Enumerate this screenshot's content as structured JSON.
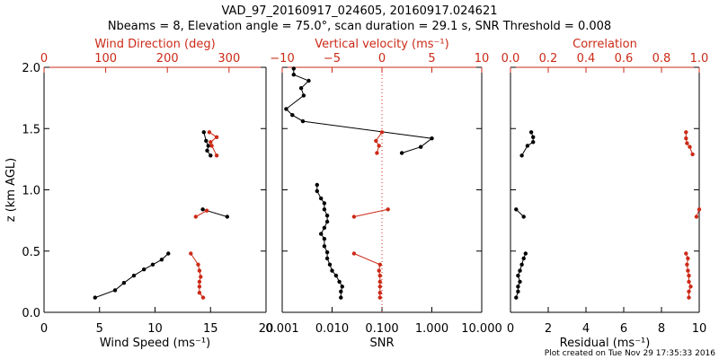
{
  "title": {
    "line1": "VAD_97_20160917_024605, 20160917.024621",
    "line2": "Nbeams = 8, Elevation angle = 75.0°, scan duration = 29.1 s, SNR Threshold = 0.008"
  },
  "footer": "Plot created on Tue Nov 29 17:35:33 2016",
  "colors": {
    "primary": "#000000",
    "secondary": "#cc2a17"
  },
  "chart_data": [
    {
      "type": "line",
      "panel": "wind",
      "ylabel": "z (km AGL)",
      "ylim": [
        0,
        2
      ],
      "yticks": [
        "0.0",
        "0.5",
        "1.0",
        "1.5",
        "2.0"
      ],
      "bottom_axis": {
        "label": "Wind Speed (ms⁻¹)",
        "range": [
          0,
          20
        ],
        "ticks": [
          "0",
          "5",
          "10",
          "15",
          "20"
        ]
      },
      "top_axis": {
        "label": "Wind Direction (deg)",
        "range": [
          0,
          360
        ],
        "ticks": [
          "0",
          "100",
          "200",
          "300"
        ]
      },
      "series": [
        {
          "color": "#000000",
          "axis": "bottom",
          "segments": [
            [
              [
                4.6,
                0.12
              ],
              [
                6.4,
                0.18
              ],
              [
                7.2,
                0.24
              ],
              [
                8.1,
                0.3
              ],
              [
                9.0,
                0.35
              ],
              [
                9.8,
                0.39
              ],
              [
                10.6,
                0.43
              ],
              [
                11.2,
                0.48
              ]
            ],
            [
              [
                14.3,
                0.84
              ],
              [
                16.5,
                0.78
              ]
            ],
            [
              [
                14.4,
                1.47
              ],
              [
                14.6,
                1.4
              ],
              [
                14.8,
                1.36
              ],
              [
                14.7,
                1.32
              ],
              [
                15.0,
                1.28
              ]
            ]
          ]
        },
        {
          "color": "#cc2a17",
          "axis": "top",
          "segments": [
            [
              [
                258,
                0.12
              ],
              [
                252,
                0.16
              ],
              [
                252,
                0.21
              ],
              [
                252,
                0.25
              ],
              [
                254,
                0.29
              ],
              [
                252,
                0.34
              ],
              [
                250,
                0.39
              ],
              [
                238,
                0.48
              ]
            ],
            [
              [
                246,
                0.78
              ],
              [
                264,
                0.83
              ]
            ],
            [
              [
                268,
                1.47
              ],
              [
                280,
                1.43
              ],
              [
                270,
                1.39
              ],
              [
                272,
                1.36
              ],
              [
                280,
                1.28
              ]
            ]
          ]
        }
      ]
    },
    {
      "type": "line",
      "panel": "snr",
      "ylim": [
        0,
        2
      ],
      "bottom_axis": {
        "label": "SNR",
        "scale": "log",
        "range": [
          0.001,
          10
        ],
        "ticks": [
          "0.001",
          "0.010",
          "0.100",
          "1.000",
          "10.000"
        ]
      },
      "top_axis": {
        "label": "Vertical velocity (ms⁻¹)",
        "range": [
          -10,
          10
        ],
        "ticks": [
          "−10",
          "−5",
          "0",
          "5",
          "10"
        ],
        "zero_line": 0
      },
      "series": [
        {
          "color": "#000000",
          "axis": "bottom",
          "segments": [
            [
              [
                0.015,
                0.12
              ],
              [
                0.015,
                0.17
              ],
              [
                0.016,
                0.21
              ],
              [
                0.014,
                0.25
              ],
              [
                0.012,
                0.3
              ],
              [
                0.01,
                0.34
              ],
              [
                0.009,
                0.39
              ],
              [
                0.008,
                0.44
              ],
              [
                0.008,
                0.49
              ],
              [
                0.007,
                0.54
              ],
              [
                0.007,
                0.6
              ],
              [
                0.006,
                0.64
              ],
              [
                0.007,
                0.69
              ],
              [
                0.008,
                0.74
              ],
              [
                0.008,
                0.79
              ],
              [
                0.007,
                0.84
              ],
              [
                0.007,
                0.89
              ],
              [
                0.006,
                0.93
              ],
              [
                0.005,
                0.99
              ],
              [
                0.005,
                1.04
              ]
            ],
            [
              [
                0.25,
                1.3
              ],
              [
                0.6,
                1.35
              ],
              [
                1.0,
                1.42
              ],
              [
                0.0026,
                1.56
              ],
              [
                0.0016,
                1.61
              ],
              [
                0.0012,
                1.66
              ],
              [
                0.0027,
                1.77
              ],
              [
                0.0024,
                1.83
              ],
              [
                0.0034,
                1.89
              ],
              [
                0.0017,
                1.94
              ],
              [
                0.0017,
                1.99
              ]
            ]
          ]
        },
        {
          "color": "#cc2a17",
          "axis": "top",
          "segments": [
            [
              [
                -0.2,
                0.12
              ],
              [
                -0.2,
                0.16
              ],
              [
                -0.2,
                0.21
              ],
              [
                -0.2,
                0.25
              ],
              [
                -0.2,
                0.3
              ],
              [
                -0.3,
                0.34
              ],
              [
                -0.2,
                0.39
              ],
              [
                -2.8,
                0.48
              ]
            ],
            [
              [
                -2.8,
                0.78
              ],
              [
                0.6,
                0.84
              ]
            ],
            [
              [
                -0.5,
                1.3
              ],
              [
                -0.3,
                1.36
              ],
              [
                -0.6,
                1.4
              ],
              [
                0.0,
                1.47
              ]
            ]
          ]
        }
      ]
    },
    {
      "type": "line",
      "panel": "residual",
      "ylim": [
        0,
        2
      ],
      "bottom_axis": {
        "label": "Residual (ms⁻¹)",
        "range": [
          0,
          10
        ],
        "ticks": [
          "0",
          "2",
          "4",
          "6",
          "8",
          "10"
        ]
      },
      "top_axis": {
        "label": "Correlation",
        "range": [
          0,
          1
        ],
        "ticks": [
          "0.0",
          "0.2",
          "0.4",
          "0.6",
          "0.8",
          "1.0"
        ]
      },
      "series": [
        {
          "color": "#000000",
          "axis": "bottom",
          "segments": [
            [
              [
                0.3,
                0.12
              ],
              [
                0.4,
                0.17
              ],
              [
                0.4,
                0.21
              ],
              [
                0.5,
                0.25
              ],
              [
                0.4,
                0.3
              ],
              [
                0.5,
                0.34
              ],
              [
                0.6,
                0.39
              ],
              [
                0.7,
                0.44
              ],
              [
                0.8,
                0.48
              ]
            ],
            [
              [
                0.3,
                0.84
              ],
              [
                0.7,
                0.78
              ]
            ],
            [
              [
                1.1,
                1.47
              ],
              [
                1.2,
                1.43
              ],
              [
                1.2,
                1.39
              ],
              [
                0.9,
                1.36
              ],
              [
                0.6,
                1.28
              ]
            ]
          ]
        },
        {
          "color": "#cc2a17",
          "axis": "top",
          "segments": [
            [
              [
                0.945,
                0.12
              ],
              [
                0.945,
                0.17
              ],
              [
                0.955,
                0.21
              ],
              [
                0.945,
                0.25
              ],
              [
                0.945,
                0.3
              ],
              [
                0.94,
                0.34
              ],
              [
                0.935,
                0.39
              ],
              [
                0.94,
                0.44
              ],
              [
                0.93,
                0.48
              ]
            ],
            [
              [
                0.985,
                0.78
              ],
              [
                1.0,
                0.84
              ]
            ],
            [
              [
                0.93,
                1.47
              ],
              [
                0.93,
                1.42
              ],
              [
                0.935,
                1.38
              ],
              [
                0.95,
                1.35
              ],
              [
                0.965,
                1.29
              ]
            ]
          ]
        }
      ]
    }
  ]
}
